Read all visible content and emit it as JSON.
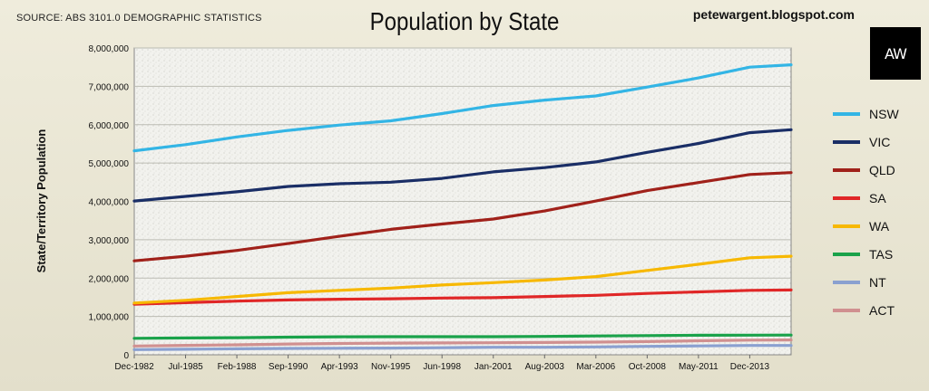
{
  "header": {
    "source": "SOURCE: ABS 3101.0 DEMOGRAPHIC STATISTICS",
    "blog": "petewargent.blogspot.com",
    "logo_text": "AW"
  },
  "chart_data": {
    "type": "line",
    "title": "Population by State",
    "ylabel": "State/Territory Population",
    "xlabel": "",
    "ylim": [
      0,
      8000000
    ],
    "y_ticks": [
      0,
      1000000,
      2000000,
      3000000,
      4000000,
      5000000,
      6000000,
      7000000,
      8000000
    ],
    "y_tick_labels": [
      "0",
      "1,000,000",
      "2,000,000",
      "3,000,000",
      "4,000,000",
      "5,000,000",
      "6,000,000",
      "7,000,000",
      "8,000,000"
    ],
    "x_tick_labels": [
      "Dec-1982",
      "Jul-1985",
      "Feb-1988",
      "Sep-1990",
      "Apr-1993",
      "Nov-1995",
      "Jun-1998",
      "Jan-2001",
      "Aug-2003",
      "Mar-2006",
      "Oct-2008",
      "May-2011",
      "Dec-2013"
    ],
    "x": [
      "Dec-1982",
      "Jul-1985",
      "Feb-1988",
      "Sep-1990",
      "Apr-1993",
      "Nov-1995",
      "Jun-1998",
      "Jan-2001",
      "Aug-2003",
      "Mar-2006",
      "Oct-2008",
      "May-2011",
      "Dec-2013",
      "Jun-2014"
    ],
    "grid": true,
    "legend_position": "right",
    "series": [
      {
        "name": "NSW",
        "color": "#33b5e5",
        "values": [
          5320000,
          5480000,
          5680000,
          5850000,
          5990000,
          6100000,
          6290000,
          6500000,
          6640000,
          6750000,
          6980000,
          7220000,
          7500000,
          7560000
        ]
      },
      {
        "name": "VIC",
        "color": "#1a2e66",
        "values": [
          4010000,
          4130000,
          4250000,
          4390000,
          4460000,
          4500000,
          4600000,
          4770000,
          4880000,
          5030000,
          5280000,
          5510000,
          5790000,
          5870000
        ]
      },
      {
        "name": "QLD",
        "color": "#a0211a",
        "values": [
          2450000,
          2570000,
          2720000,
          2900000,
          3090000,
          3270000,
          3410000,
          3540000,
          3750000,
          4010000,
          4280000,
          4490000,
          4700000,
          4750000
        ]
      },
      {
        "name": "SA",
        "color": "#e02727",
        "values": [
          1320000,
          1360000,
          1400000,
          1430000,
          1450000,
          1460000,
          1480000,
          1490000,
          1520000,
          1550000,
          1600000,
          1640000,
          1680000,
          1690000
        ]
      },
      {
        "name": "WA",
        "color": "#f7b800",
        "values": [
          1350000,
          1420000,
          1520000,
          1620000,
          1680000,
          1740000,
          1820000,
          1880000,
          1950000,
          2040000,
          2200000,
          2360000,
          2530000,
          2570000
        ]
      },
      {
        "name": "TAS",
        "color": "#1aa24a",
        "values": [
          430000,
          440000,
          445000,
          460000,
          470000,
          473000,
          472000,
          471000,
          480000,
          490000,
          500000,
          510000,
          513000,
          514000
        ]
      },
      {
        "name": "NT",
        "color": "#8aa0d0",
        "values": [
          135000,
          145000,
          155000,
          165000,
          170000,
          175000,
          185000,
          195000,
          197000,
          205000,
          220000,
          232000,
          243000,
          244000
        ]
      },
      {
        "name": "ACT",
        "color": "#d09090",
        "values": [
          230000,
          245000,
          260000,
          280000,
          295000,
          305000,
          310000,
          315000,
          322000,
          330000,
          345000,
          365000,
          383000,
          386000
        ]
      }
    ]
  }
}
